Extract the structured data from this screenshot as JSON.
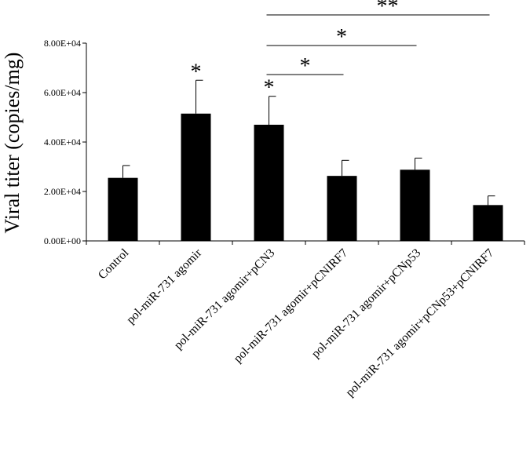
{
  "chart_data": {
    "type": "bar",
    "ylabel": "Viral titer (copies/mg)",
    "xlabel": "",
    "ylim": [
      0,
      80000
    ],
    "yticks": [
      0,
      20000,
      40000,
      60000,
      80000
    ],
    "ytick_labels": [
      "0.00E+00",
      "2.00E+04",
      "4.00E+04",
      "6.00E+04",
      "8.00E+04"
    ],
    "grid": false,
    "categories": [
      "Control",
      "pol-miR-731 agomir",
      "pol-miR-731 agomir+pCN3",
      "pol-miR-731 agomir+pCNIRF7",
      "pol-miR-731 agomir+pCNp53",
      "pol-miR-731 agomir+pCNp53+pCNIRF7"
    ],
    "values": [
      25500,
      51500,
      47000,
      26300,
      28800,
      14500
    ],
    "errors": [
      5000,
      13500,
      11500,
      6300,
      4700,
      3700
    ],
    "bar_color": "#000000",
    "bar_significance": [
      "",
      "*",
      "*",
      "",
      "",
      ""
    ],
    "comparisons": [
      {
        "from": 2,
        "to": 3,
        "label": "*"
      },
      {
        "from": 2,
        "to": 4,
        "label": "*"
      },
      {
        "from": 2,
        "to": 5,
        "label": "**"
      }
    ]
  }
}
